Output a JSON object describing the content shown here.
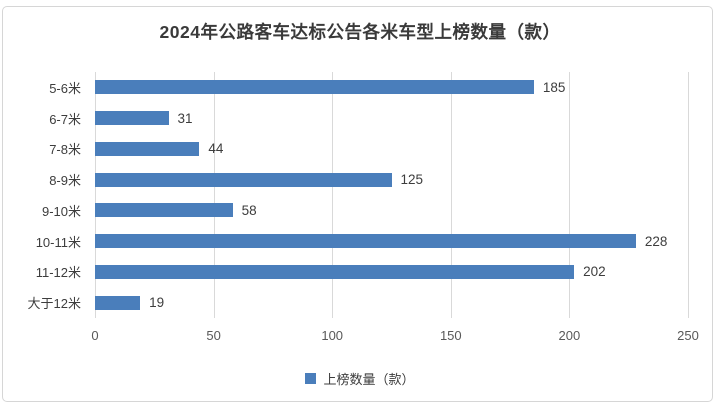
{
  "chart_data": {
    "type": "bar",
    "orientation": "horizontal",
    "title": "2024年公路客车达标公告各米车型上榜数量（款）",
    "categories": [
      "5-6米",
      "6-7米",
      "7-8米",
      "8-9米",
      "9-10米",
      "10-11米",
      "11-12米",
      "大于12米"
    ],
    "values": [
      185,
      31,
      44,
      125,
      58,
      228,
      202,
      19
    ],
    "series_name": "上榜数量（款）",
    "xlabel": "",
    "ylabel": "",
    "xlim": [
      0,
      250
    ],
    "x_ticks": [
      0,
      50,
      100,
      150,
      200,
      250
    ],
    "grid": "vertical-gridlines-on",
    "data_labels": true,
    "legend_position": "bottom"
  },
  "legend": {
    "label": "上榜数量（款）"
  },
  "colors": {
    "bar": "#4a7ebb",
    "gridline": "#d9d9d9",
    "title_text": "#3a3a3a",
    "label_text": "#3d3d3d",
    "tick_text": "#595959",
    "frame_border": "#d6d6d6"
  }
}
